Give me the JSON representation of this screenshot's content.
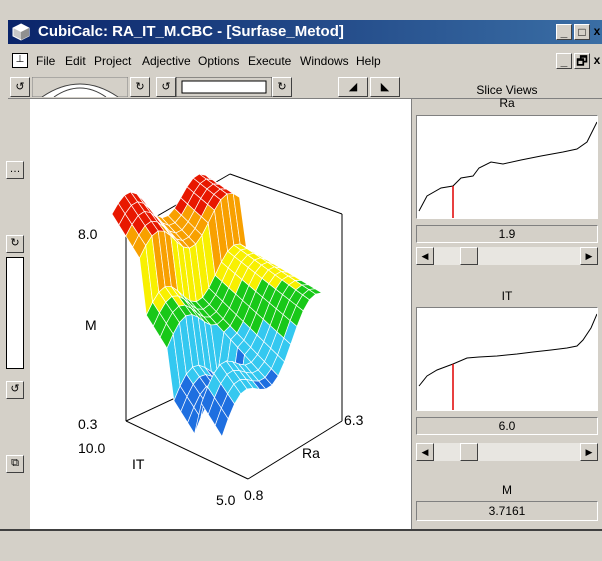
{
  "window": {
    "title": "CubiCalc: RA_IT_M.CBC - [Surfase_Metod]",
    "controls": {
      "minimize": "_",
      "maximize": "□",
      "close": "x"
    }
  },
  "menu": {
    "items": [
      "File",
      "Edit",
      "Project",
      "Adjective",
      "Options",
      "Execute",
      "Windows",
      "Help"
    ],
    "doc_controls": {
      "minimize": "_",
      "restore": "🗗",
      "close": "x"
    }
  },
  "plot": {
    "labels": {
      "z_max": "8.0",
      "z_min": "0.3",
      "z_axis": "M",
      "it_max": "10.0",
      "it_axis": "IT",
      "it_min": "5.0",
      "ra_min": "0.8",
      "ra_axis": "Ra",
      "ra_max": "6.3"
    }
  },
  "panel": {
    "heading": "Slice Views",
    "slices": [
      {
        "label": "Ra",
        "value": "1.9",
        "slider_fraction": 0.2
      },
      {
        "label": "IT",
        "value": "6.0",
        "slider_fraction": 0.2
      }
    ],
    "output": {
      "label": "M",
      "value": "3.7161"
    }
  },
  "colors": {
    "title_start": "#0a246a",
    "title_end": "#3a6ea5",
    "surface_levels": [
      "#0000cc",
      "#1e6fe0",
      "#34c8f0",
      "#18c818",
      "#f8f000",
      "#f8a000",
      "#e81800"
    ],
    "slice_marker": "#e00000"
  }
}
